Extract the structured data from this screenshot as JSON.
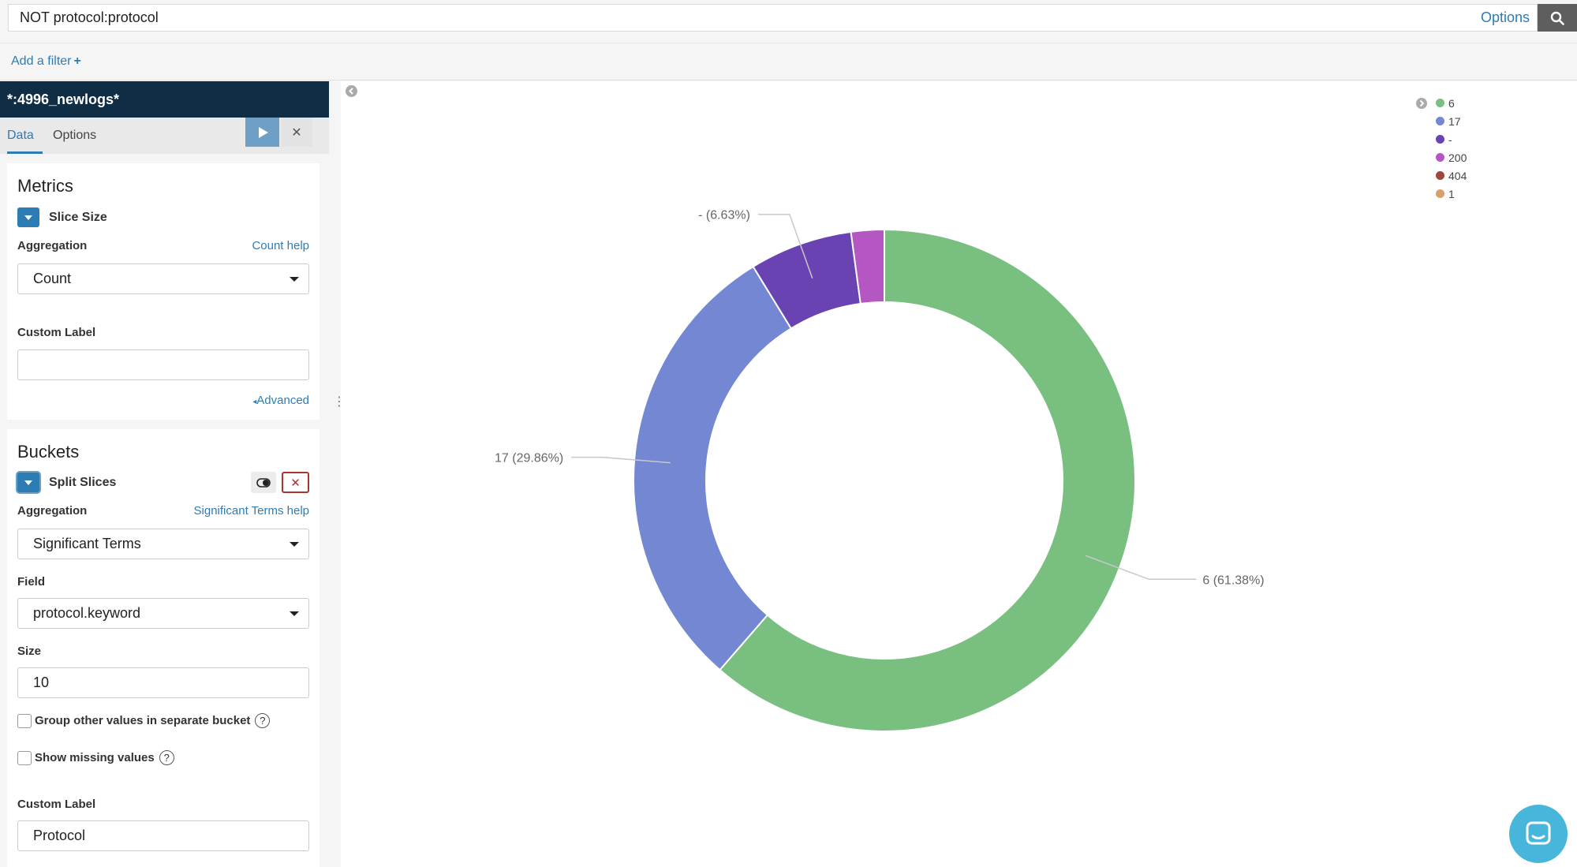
{
  "query": {
    "text": "NOT protocol:protocol",
    "options_label": "Options",
    "search_icon": "search-icon"
  },
  "filter": {
    "add_filter_label": "Add a filter",
    "plus": "+"
  },
  "sidebar": {
    "index_pattern": "*:4996_newlogs*",
    "tabs": [
      {
        "label": "Data",
        "active": true
      },
      {
        "label": "Options",
        "active": false
      }
    ],
    "discard_label": "✕",
    "metrics": {
      "title": "Metrics",
      "agg_name": "Slice Size",
      "aggregation_label": "Aggregation",
      "help_label": "Count help",
      "aggregation_value": "Count",
      "custom_label_label": "Custom Label",
      "custom_label_value": "",
      "advanced_label": "Advanced"
    },
    "buckets": {
      "title": "Buckets",
      "agg_name": "Split Slices",
      "remove_label": "✕",
      "aggregation_label": "Aggregation",
      "help_label": "Significant Terms help",
      "aggregation_value": "Significant Terms",
      "field_label": "Field",
      "field_value": "protocol.keyword",
      "size_label": "Size",
      "size_value": "10",
      "group_other_label": "Group other values in separate bucket",
      "show_missing_label": "Show missing values",
      "qmark": "?",
      "custom_label_label": "Custom Label",
      "custom_label_value": "Protocol"
    }
  },
  "colors": {
    "accent": "#2d7cb3",
    "header_bg": "#0f2d44"
  },
  "chart_data": {
    "type": "pie",
    "donut": true,
    "slices": [
      {
        "label": "6",
        "percent": 61.38,
        "color": "#78bf80",
        "callout": "6 (61.38%)"
      },
      {
        "label": "17",
        "percent": 29.86,
        "color": "#7387d3",
        "callout": "17 (29.86%)"
      },
      {
        "label": "-",
        "percent": 6.63,
        "color": "#6a43b3",
        "callout": "- (6.63%)"
      },
      {
        "label": "200",
        "percent": 2.13,
        "color": "#b457c2",
        "callout": ""
      }
    ],
    "legend": [
      {
        "label": "6",
        "color": "#78bf80"
      },
      {
        "label": "17",
        "color": "#7387d3"
      },
      {
        "label": "-",
        "color": "#6a43b3"
      },
      {
        "label": "200",
        "color": "#b457c2"
      },
      {
        "label": "404",
        "color": "#a0453c"
      },
      {
        "label": "1",
        "color": "#d8a06a"
      }
    ],
    "legend_position": "top-right"
  }
}
